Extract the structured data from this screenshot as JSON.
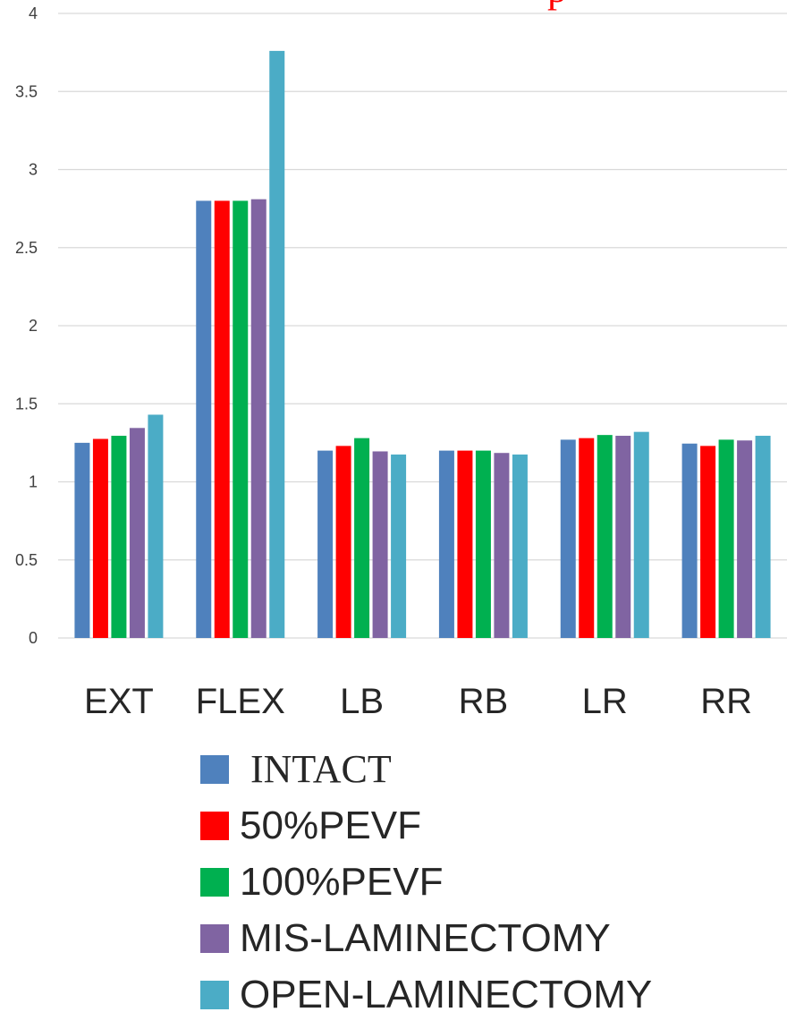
{
  "chart_data": {
    "type": "bar",
    "categories": [
      "EXT",
      "FLEX",
      "LB",
      "RB",
      "LR",
      "RR"
    ],
    "series": [
      {
        "name": "INTACT",
        "color": "#4f81bd",
        "values": [
          1.25,
          2.8,
          1.2,
          1.2,
          1.27,
          1.245
        ]
      },
      {
        "name": "50%PEVF",
        "color": "#ff0000",
        "values": [
          1.275,
          2.8,
          1.23,
          1.2,
          1.28,
          1.23
        ]
      },
      {
        "name": "100%PEVF",
        "color": "#00b050",
        "values": [
          1.295,
          2.8,
          1.28,
          1.2,
          1.3,
          1.27
        ]
      },
      {
        "name": "MIS-LAMINECTOMY",
        "color": "#8064a2",
        "values": [
          1.345,
          2.81,
          1.195,
          1.185,
          1.295,
          1.265
        ]
      },
      {
        "name": "OPEN-LAMINECTOMY",
        "color": "#4bacc6",
        "values": [
          1.43,
          3.76,
          1.175,
          1.175,
          1.32,
          1.295
        ]
      }
    ],
    "yticks": [
      "0",
      "0.5",
      "1",
      "1.5",
      "2",
      "2.5",
      "3",
      "3.5",
      "4"
    ],
    "ylim": [
      0,
      4
    ],
    "grid": true,
    "legend_position": "bottom"
  }
}
